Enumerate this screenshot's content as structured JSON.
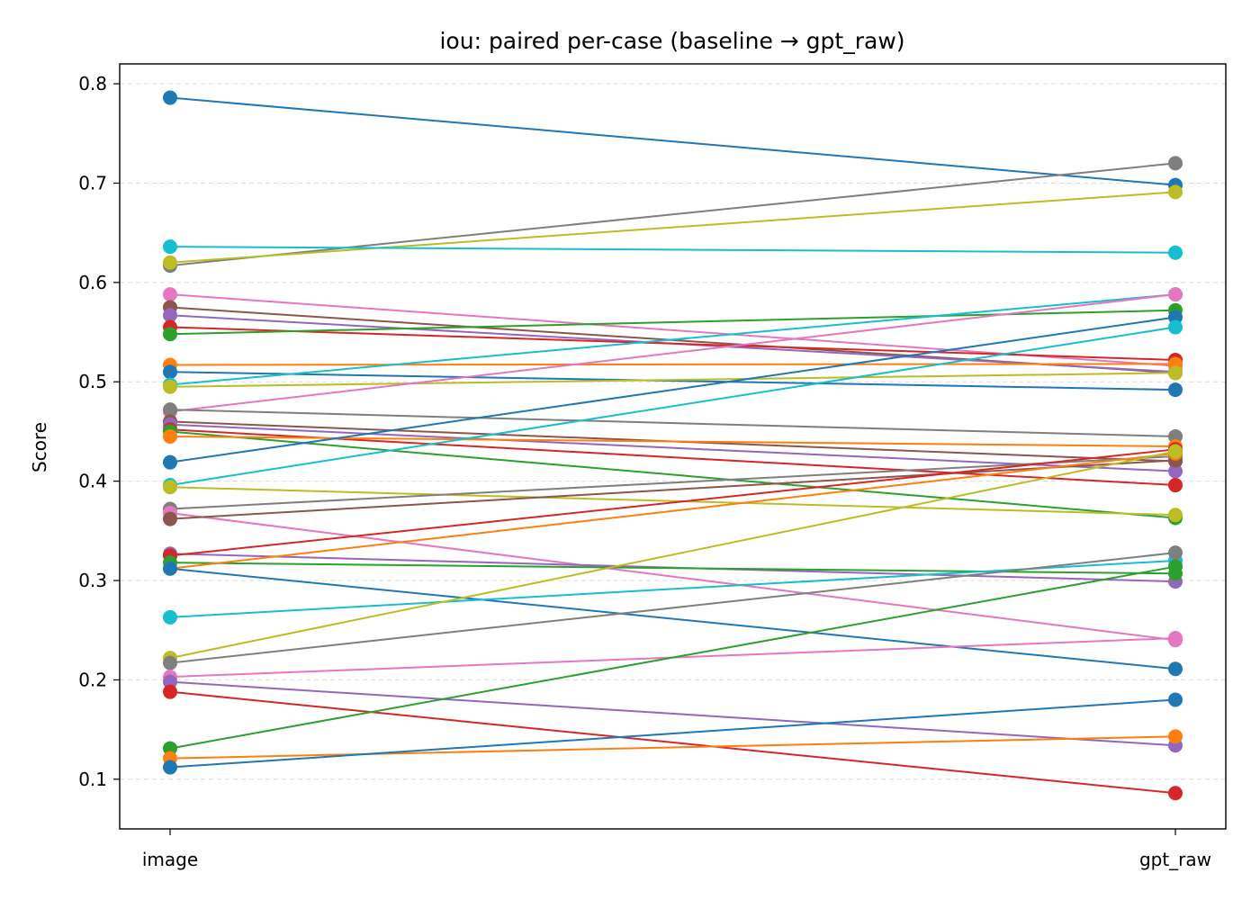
{
  "chart_data": {
    "type": "line",
    "title": "iou: paired per-case (baseline → gpt_raw)",
    "ylabel": "Score",
    "xlabel": "",
    "categories": [
      "image",
      "gpt_raw"
    ],
    "ylim": [
      0.05,
      0.82
    ],
    "yticks": [
      0.1,
      0.2,
      0.3,
      0.4,
      0.5,
      0.6,
      0.7,
      0.8
    ],
    "grid": "y",
    "series": [
      {
        "color": "#1f77b4",
        "values": [
          0.786,
          0.698
        ]
      },
      {
        "color": "#7f7f7f",
        "values": [
          0.617,
          0.72
        ]
      },
      {
        "color": "#bcbd22",
        "values": [
          0.62,
          0.691
        ]
      },
      {
        "color": "#17becf",
        "values": [
          0.636,
          0.63
        ]
      },
      {
        "color": "#e377c2",
        "values": [
          0.588,
          0.516
        ]
      },
      {
        "color": "#8c564b",
        "values": [
          0.575,
          0.509
        ]
      },
      {
        "color": "#9467bd",
        "values": [
          0.567,
          0.51
        ]
      },
      {
        "color": "#d62728",
        "values": [
          0.555,
          0.522
        ]
      },
      {
        "color": "#2ca02c",
        "values": [
          0.548,
          0.572
        ]
      },
      {
        "color": "#ff7f0e",
        "values": [
          0.517,
          0.518
        ]
      },
      {
        "color": "#1f77b4",
        "values": [
          0.51,
          0.492
        ]
      },
      {
        "color": "#17becf",
        "values": [
          0.497,
          0.588
        ]
      },
      {
        "color": "#bcbd22",
        "values": [
          0.495,
          0.509
        ]
      },
      {
        "color": "#e377c2",
        "values": [
          0.47,
          0.588
        ]
      },
      {
        "color": "#7f7f7f",
        "values": [
          0.472,
          0.445
        ]
      },
      {
        "color": "#8c564b",
        "values": [
          0.46,
          0.42
        ]
      },
      {
        "color": "#9467bd",
        "values": [
          0.457,
          0.41
        ]
      },
      {
        "color": "#d62728",
        "values": [
          0.452,
          0.396
        ]
      },
      {
        "color": "#2ca02c",
        "values": [
          0.45,
          0.363
        ]
      },
      {
        "color": "#ff7f0e",
        "values": [
          0.445,
          0.435
        ]
      },
      {
        "color": "#1f77b4",
        "values": [
          0.419,
          0.565
        ]
      },
      {
        "color": "#17becf",
        "values": [
          0.396,
          0.555
        ]
      },
      {
        "color": "#bcbd22",
        "values": [
          0.394,
          0.366
        ]
      },
      {
        "color": "#7f7f7f",
        "values": [
          0.372,
          0.425
        ]
      },
      {
        "color": "#e377c2",
        "values": [
          0.368,
          0.24
        ]
      },
      {
        "color": "#8c564b",
        "values": [
          0.362,
          0.421
        ]
      },
      {
        "color": "#9467bd",
        "values": [
          0.327,
          0.299
        ]
      },
      {
        "color": "#d62728",
        "values": [
          0.325,
          0.432
        ]
      },
      {
        "color": "#2ca02c",
        "values": [
          0.318,
          0.307
        ]
      },
      {
        "color": "#ff7f0e",
        "values": [
          0.312,
          0.428
        ]
      },
      {
        "color": "#1f77b4",
        "values": [
          0.312,
          0.211
        ]
      },
      {
        "color": "#17becf",
        "values": [
          0.263,
          0.32
        ]
      },
      {
        "color": "#bcbd22",
        "values": [
          0.222,
          0.43
        ]
      },
      {
        "color": "#7f7f7f",
        "values": [
          0.217,
          0.328
        ]
      },
      {
        "color": "#e377c2",
        "values": [
          0.203,
          0.242
        ]
      },
      {
        "color": "#9467bd",
        "values": [
          0.198,
          0.134
        ]
      },
      {
        "color": "#d62728",
        "values": [
          0.188,
          0.086
        ]
      },
      {
        "color": "#2ca02c",
        "values": [
          0.131,
          0.314
        ]
      },
      {
        "color": "#ff7f0e",
        "values": [
          0.121,
          0.143
        ]
      },
      {
        "color": "#1f77b4",
        "values": [
          0.112,
          0.18
        ]
      }
    ]
  }
}
